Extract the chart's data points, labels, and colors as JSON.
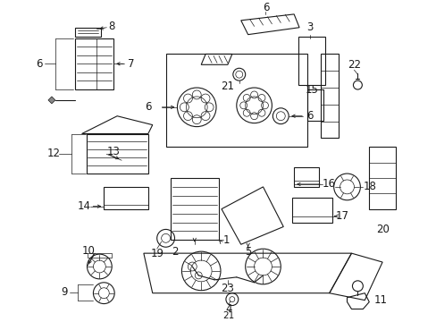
{
  "bg_color": "#ffffff",
  "line_color": "#1a1a1a",
  "fig_width": 4.89,
  "fig_height": 3.6,
  "dpi": 100,
  "label_fs": 8.5,
  "label_color": "#111111"
}
